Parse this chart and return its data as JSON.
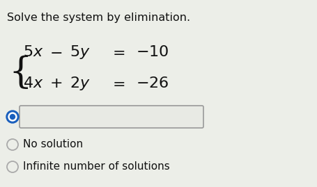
{
  "title": "Solve the system by elimination.",
  "title_fontsize": 11.5,
  "background_color": "#eceee8",
  "text_color": "#111111",
  "radio_selected_color": "#1a5fbd",
  "radio_border_color": "#aaaaaa",
  "box_facecolor": "#e8eae4",
  "box_edgecolor": "#999999",
  "option1": "No solution",
  "option2": "Infinite number of solutions",
  "eq_fontsize": 16,
  "curly_fontsize": 38
}
